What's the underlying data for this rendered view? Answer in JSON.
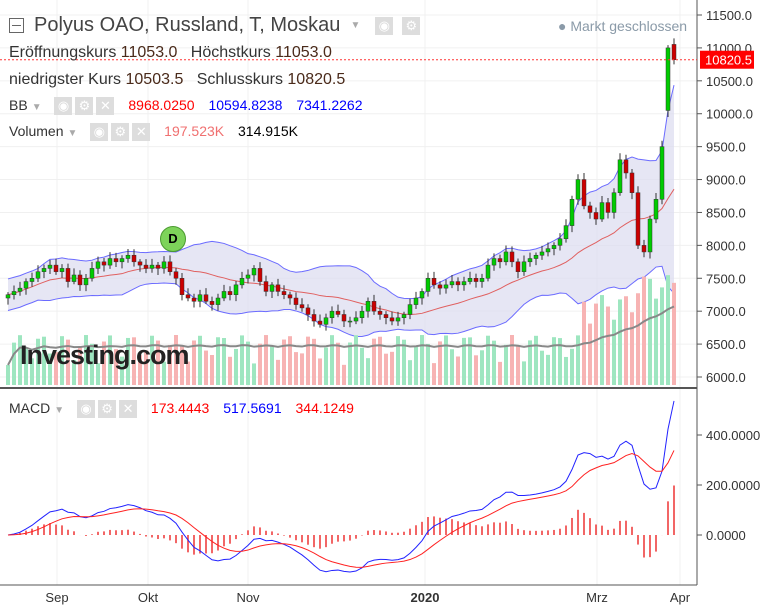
{
  "header": {
    "title": "Polyus OAO, Russland, T, Moskau",
    "status": "Markt geschlossen",
    "open_label": "Eröffnungskurs",
    "open": "11053.0",
    "high_label": "Höchstkurs",
    "high": "11053.0",
    "low_label": "niedrigster Kurs",
    "low": "10503.5",
    "close_label": "Schlusskurs",
    "close": "10820.5"
  },
  "indicators": {
    "bb": {
      "label": "BB",
      "mid": "8968.0250",
      "upper": "10594.8238",
      "lower": "7341.2262"
    },
    "volume": {
      "label": "Volumen",
      "v1": "197.523K",
      "v2": "314.915K"
    },
    "macd": {
      "label": "MACD",
      "v1": "173.4443",
      "v2": "517.5691",
      "v3": "344.1249"
    }
  },
  "logo": "Investing.com",
  "badge": "D",
  "colors": {
    "up": "#00cc00",
    "down": "#cc0000",
    "bb_fill": "#dcdcf0",
    "bb_band": "#6b6bff",
    "bb_mid": "#e06060",
    "price_tag": "#ff0000"
  },
  "chart_data": {
    "type": "candlestick",
    "price_axis": {
      "ticks": [
        "11500.0",
        "11000.0",
        "10500.0",
        "10000.0",
        "9500.0",
        "9000.0",
        "8500.0",
        "8000.0",
        "7500.0",
        "7000.0",
        "6500.0",
        "6000.0"
      ],
      "range": [
        6000,
        11500
      ]
    },
    "macd_axis": {
      "ticks": [
        "400.0000",
        "200.0000",
        "0.0000"
      ],
      "range": [
        -200,
        500
      ]
    },
    "x_labels": [
      "Sep",
      "Okt",
      "Nov",
      "2020",
      "Mrz",
      "Apr"
    ],
    "last_price": "10820.5",
    "closes": [
      7250,
      7300,
      7350,
      7450,
      7500,
      7600,
      7650,
      7700,
      7600,
      7650,
      7450,
      7550,
      7400,
      7500,
      7650,
      7750,
      7700,
      7800,
      7750,
      7800,
      7850,
      7750,
      7700,
      7650,
      7700,
      7650,
      7750,
      7600,
      7500,
      7250,
      7200,
      7150,
      7250,
      7150,
      7100,
      7200,
      7300,
      7250,
      7400,
      7500,
      7550,
      7650,
      7450,
      7300,
      7400,
      7300,
      7250,
      7200,
      7100,
      7050,
      6950,
      6850,
      6800,
      6900,
      7000,
      6950,
      6850,
      6850,
      6900,
      7000,
      7150,
      7000,
      6950,
      6900,
      6850,
      6900,
      6950,
      7100,
      7200,
      7300,
      7500,
      7400,
      7350,
      7400,
      7450,
      7400,
      7450,
      7500,
      7450,
      7500,
      7700,
      7800,
      7750,
      7900,
      7750,
      7600,
      7750,
      7800,
      7850,
      7900,
      7950,
      8000,
      8100,
      8300,
      8700,
      9000,
      8600,
      8500,
      8400,
      8650,
      8500,
      8800,
      9300,
      9100,
      8800,
      8000,
      7900,
      8400,
      8700,
      9500,
      11000,
      10820.5
    ],
    "last_open": 11053,
    "prev_open": 10050
  }
}
